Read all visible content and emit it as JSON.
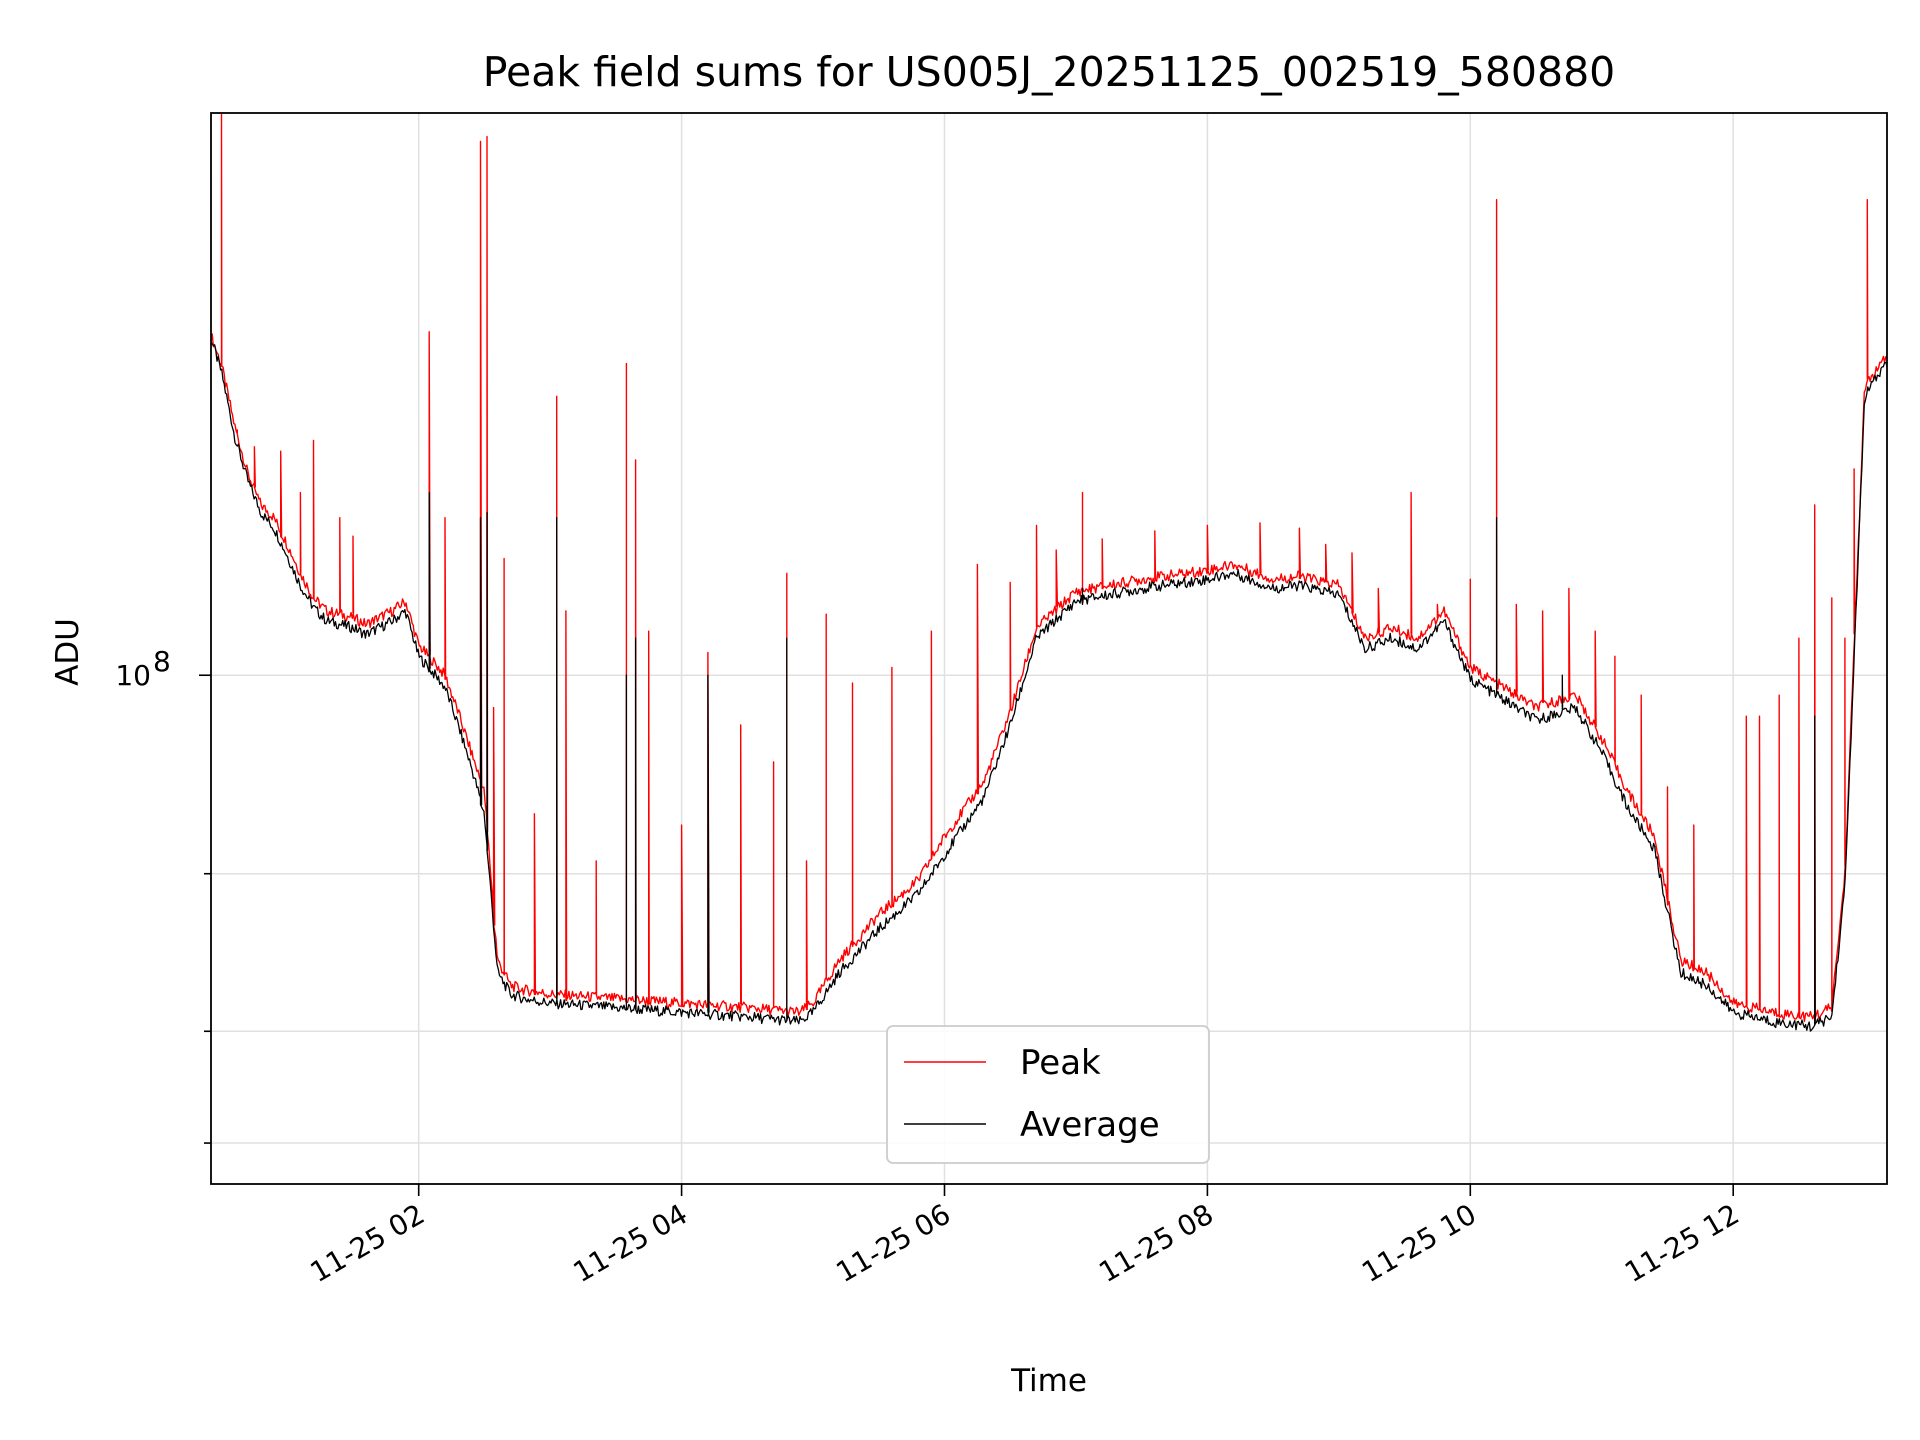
{
  "chart_data": {
    "type": "line",
    "title": "Peak field sums for US005J_20251125_002519_580880",
    "xlabel": "Time",
    "ylabel": "ADU",
    "y_scale": "log",
    "grid": true,
    "legend_position": "lower-center",
    "x_tick_labels": [
      "11-25 02",
      "11-25 04",
      "11-25 06",
      "11-25 08",
      "11-25 10",
      "11-25 12"
    ],
    "x_tick_hours": [
      2,
      4,
      6,
      8,
      10,
      12
    ],
    "y_tick_major": [
      {
        "value": 100000000,
        "base": "10",
        "exponent": "8"
      }
    ],
    "y_tick_minor": [
      30000000,
      40000000,
      60000000
    ],
    "xlim_hours": [
      0.42,
      13.17
    ],
    "ylim": [
      27000000,
      425000000
    ],
    "colors": {
      "Peak": "#ff0000",
      "Average": "#000000"
    },
    "series": [
      {
        "name": "Peak",
        "color": "#ff0000",
        "x_hours": [
          0.42,
          0.5,
          0.6,
          0.7,
          0.8,
          0.9,
          1.0,
          1.1,
          1.2,
          1.3,
          1.4,
          1.5,
          1.6,
          1.7,
          1.8,
          1.9,
          2.0,
          2.1,
          2.2,
          2.3,
          2.4,
          2.5,
          2.6,
          2.7,
          2.8,
          3.0,
          3.5,
          4.0,
          4.5,
          4.9,
          5.0,
          5.2,
          5.5,
          5.8,
          6.0,
          6.3,
          6.5,
          6.7,
          7.0,
          7.5,
          8.0,
          8.2,
          8.5,
          8.7,
          9.0,
          9.2,
          9.4,
          9.6,
          9.8,
          10.0,
          10.2,
          10.5,
          10.8,
          11.0,
          11.2,
          11.4,
          11.6,
          11.8,
          12.0,
          12.3,
          12.6,
          12.75,
          12.85,
          13.0,
          13.17
        ],
        "y": [
          240000000,
          222000000,
          190000000,
          168000000,
          155000000,
          150000000,
          140000000,
          130000000,
          122000000,
          118000000,
          117000000,
          116000000,
          114000000,
          116000000,
          118000000,
          121000000,
          108000000,
          104000000,
          100000000,
          91000000,
          82000000,
          74000000,
          48000000,
          45000000,
          44500000,
          44000000,
          43500000,
          43000000,
          42500000,
          42000000,
          43000000,
          48000000,
          54000000,
          59000000,
          66000000,
          76000000,
          91000000,
          113000000,
          124000000,
          128000000,
          131000000,
          133000000,
          128000000,
          129000000,
          126000000,
          110000000,
          113000000,
          110000000,
          118000000,
          102000000,
          98000000,
          92000000,
          95000000,
          85000000,
          74000000,
          66000000,
          48000000,
          46500000,
          43000000,
          42000000,
          41500000,
          42500000,
          60000000,
          210000000,
          227000000
        ],
        "spikes": [
          [
            0.5,
            425000000
          ],
          [
            0.62,
            188000000
          ],
          [
            0.75,
            180000000
          ],
          [
            0.95,
            178000000
          ],
          [
            1.1,
            160000000
          ],
          [
            1.2,
            183000000
          ],
          [
            1.4,
            150000000
          ],
          [
            1.5,
            143000000
          ],
          [
            2.08,
            242000000
          ],
          [
            2.2,
            150000000
          ],
          [
            2.47,
            395000000
          ],
          [
            2.52,
            400000000
          ],
          [
            2.57,
            92000000
          ],
          [
            2.65,
            135000000
          ],
          [
            2.88,
            70000000
          ],
          [
            3.05,
            205000000
          ],
          [
            3.12,
            118000000
          ],
          [
            3.35,
            62000000
          ],
          [
            3.58,
            223000000
          ],
          [
            3.65,
            174000000
          ],
          [
            3.75,
            112000000
          ],
          [
            4.0,
            68000000
          ],
          [
            4.2,
            106000000
          ],
          [
            4.45,
            88000000
          ],
          [
            4.7,
            80000000
          ],
          [
            4.8,
            130000000
          ],
          [
            4.95,
            62000000
          ],
          [
            5.1,
            117000000
          ],
          [
            5.3,
            98000000
          ],
          [
            5.6,
            102000000
          ],
          [
            5.9,
            112000000
          ],
          [
            6.25,
            133000000
          ],
          [
            6.5,
            127000000
          ],
          [
            6.7,
            147000000
          ],
          [
            6.85,
            138000000
          ],
          [
            7.05,
            160000000
          ],
          [
            7.2,
            142000000
          ],
          [
            7.6,
            145000000
          ],
          [
            8.0,
            147000000
          ],
          [
            8.4,
            148000000
          ],
          [
            8.7,
            146000000
          ],
          [
            8.9,
            140000000
          ],
          [
            9.1,
            137000000
          ],
          [
            9.3,
            125000000
          ],
          [
            9.55,
            160000000
          ],
          [
            9.75,
            120000000
          ],
          [
            10.0,
            128000000
          ],
          [
            10.2,
            340000000
          ],
          [
            10.35,
            120000000
          ],
          [
            10.55,
            118000000
          ],
          [
            10.75,
            125000000
          ],
          [
            10.95,
            112000000
          ],
          [
            11.1,
            105000000
          ],
          [
            11.3,
            95000000
          ],
          [
            11.5,
            75000000
          ],
          [
            11.7,
            68000000
          ],
          [
            12.1,
            90000000
          ],
          [
            12.2,
            90000000
          ],
          [
            12.35,
            95000000
          ],
          [
            12.5,
            110000000
          ],
          [
            12.62,
            155000000
          ],
          [
            12.75,
            122000000
          ],
          [
            12.85,
            110000000
          ],
          [
            12.92,
            170000000
          ],
          [
            13.02,
            340000000
          ]
        ]
      },
      {
        "name": "Average",
        "color": "#000000",
        "x_hours": [
          0.42,
          0.5,
          0.6,
          0.7,
          0.8,
          0.9,
          1.0,
          1.1,
          1.2,
          1.3,
          1.4,
          1.5,
          1.6,
          1.7,
          1.8,
          1.9,
          2.0,
          2.1,
          2.2,
          2.3,
          2.4,
          2.5,
          2.6,
          2.7,
          2.8,
          3.0,
          3.5,
          4.0,
          4.5,
          4.9,
          5.0,
          5.2,
          5.5,
          5.8,
          6.0,
          6.3,
          6.5,
          6.7,
          7.0,
          7.5,
          8.0,
          8.2,
          8.5,
          8.7,
          9.0,
          9.2,
          9.4,
          9.6,
          9.8,
          10.0,
          10.2,
          10.5,
          10.8,
          11.0,
          11.2,
          11.4,
          11.6,
          11.8,
          12.0,
          12.3,
          12.6,
          12.75,
          12.85,
          13.0,
          13.17
        ],
        "y": [
          238000000,
          218000000,
          185000000,
          165000000,
          152000000,
          146000000,
          136000000,
          126000000,
          119000000,
          115000000,
          114000000,
          113000000,
          111000000,
          113000000,
          115000000,
          118000000,
          105000000,
          101000000,
          97000000,
          88000000,
          79000000,
          70000000,
          46500000,
          44000000,
          43500000,
          43000000,
          42500000,
          42000000,
          41500000,
          41000000,
          42000000,
          46500000,
          52000000,
          57000000,
          63000000,
          73000000,
          88000000,
          110000000,
          121000000,
          125000000,
          128000000,
          130000000,
          125000000,
          126000000,
          123000000,
          107000000,
          110000000,
          107000000,
          115000000,
          99000000,
          95000000,
          89000000,
          92000000,
          82000000,
          71000000,
          64000000,
          46500000,
          45000000,
          42000000,
          41000000,
          40500000,
          41500000,
          58000000,
          205000000,
          224000000
        ],
        "spikes": [
          [
            2.08,
            160000000
          ],
          [
            2.47,
            150000000
          ],
          [
            2.52,
            152000000
          ],
          [
            3.05,
            150000000
          ],
          [
            3.58,
            100000000
          ],
          [
            3.65,
            110000000
          ],
          [
            4.2,
            100000000
          ],
          [
            4.8,
            110000000
          ],
          [
            7.05,
            125000000
          ],
          [
            10.2,
            150000000
          ],
          [
            10.7,
            100000000
          ],
          [
            12.62,
            90000000
          ]
        ]
      }
    ]
  }
}
